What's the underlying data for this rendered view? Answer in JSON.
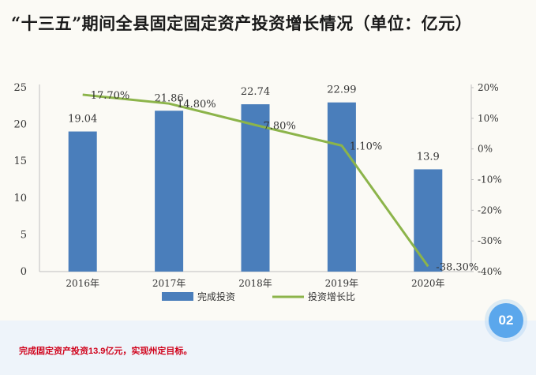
{
  "title": "“十三五”期间全县固定固定资产投资增长情况（单位：亿元）",
  "caption": "完成固定资产投资13.9亿元，实现州定目标。",
  "badge": "02",
  "colors": {
    "bar": "#4a7ebb",
    "line": "#8cb44a",
    "caption": "#d0021b",
    "badge": "#5ba7ec"
  },
  "chart_data": {
    "type": "bar",
    "categories": [
      "2016年",
      "2017年",
      "2018年",
      "2019年",
      "2020年"
    ],
    "series": [
      {
        "name": "完成投资",
        "type": "bar",
        "axis": "left",
        "values": [
          19.04,
          21.86,
          22.74,
          22.99,
          13.9
        ],
        "labels": [
          "19.04",
          "21.86",
          "22.74",
          "22.99",
          "13.9"
        ]
      },
      {
        "name": "投资增长比",
        "type": "line",
        "axis": "right",
        "values": [
          17.7,
          14.8,
          7.8,
          1.1,
          -38.3
        ],
        "labels": [
          "17.70%",
          "14.80%",
          "7.80%",
          "1.10%",
          "-38.30%"
        ]
      }
    ],
    "y_left": {
      "min": 0,
      "max": 25,
      "ticks": [
        "0",
        "5",
        "10",
        "15",
        "20",
        "25"
      ]
    },
    "y_right": {
      "min": -40,
      "max": 20,
      "ticks": [
        "20%",
        "10%",
        "0%",
        "-10%",
        "-20%",
        "-30%",
        "-40%"
      ]
    },
    "grid": false,
    "legend_position": "bottom"
  }
}
